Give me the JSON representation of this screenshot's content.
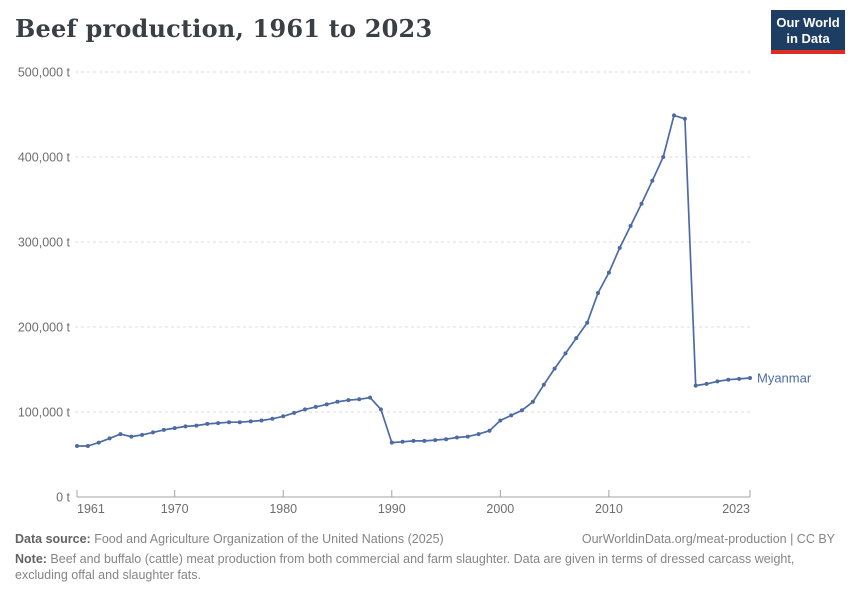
{
  "header": {
    "title": "Beef production, 1961 to 2023",
    "logo": {
      "line1": "Our World",
      "line2": "in Data",
      "bg_color": "#1d3d63",
      "accent_color": "#dc2e22",
      "text_color": "#ffffff"
    }
  },
  "chart_data": {
    "type": "line",
    "title": "Beef production, 1961 to 2023",
    "unit": "t",
    "xlim": [
      1961,
      2023
    ],
    "ylim": [
      0,
      500000
    ],
    "grid": true,
    "legend_position": "end-of-line-label",
    "x": [
      1961,
      1962,
      1963,
      1964,
      1965,
      1966,
      1967,
      1968,
      1969,
      1970,
      1971,
      1972,
      1973,
      1974,
      1975,
      1976,
      1977,
      1978,
      1979,
      1980,
      1981,
      1982,
      1983,
      1984,
      1985,
      1986,
      1987,
      1988,
      1989,
      1990,
      1991,
      1992,
      1993,
      1994,
      1995,
      1996,
      1997,
      1998,
      1999,
      2000,
      2001,
      2002,
      2003,
      2004,
      2005,
      2006,
      2007,
      2008,
      2009,
      2010,
      2011,
      2012,
      2013,
      2014,
      2015,
      2016,
      2017,
      2018,
      2019,
      2020,
      2021,
      2022,
      2023
    ],
    "series": [
      {
        "name": "Myanmar",
        "color": "#4c6ba5",
        "values": [
          60000,
          60000,
          64000,
          69000,
          74000,
          71000,
          73000,
          76000,
          79000,
          81000,
          83000,
          84000,
          86000,
          87000,
          88000,
          88000,
          89000,
          90000,
          92000,
          95000,
          99000,
          103000,
          106000,
          109000,
          112000,
          114000,
          115000,
          117000,
          103000,
          64000,
          65000,
          66000,
          66000,
          67000,
          68000,
          70000,
          71000,
          74000,
          78000,
          90000,
          96000,
          102000,
          112000,
          132000,
          151000,
          169000,
          187000,
          205000,
          240000,
          264000,
          293000,
          319000,
          345000,
          372000,
          400000,
          449000,
          445000,
          131000,
          133000,
          136000,
          138000,
          139000,
          140000
        ]
      }
    ],
    "y_ticks": [
      {
        "value": 0,
        "label": "0 t"
      },
      {
        "value": 100000,
        "label": "100,000 t"
      },
      {
        "value": 200000,
        "label": "200,000 t"
      },
      {
        "value": 300000,
        "label": "300,000 t"
      },
      {
        "value": 400000,
        "label": "400,000 t"
      },
      {
        "value": 500000,
        "label": "500,000 t"
      }
    ],
    "x_ticks": [
      {
        "value": 1961,
        "label": "1961",
        "anchor": "start"
      },
      {
        "value": 1970,
        "label": "1970",
        "anchor": "middle"
      },
      {
        "value": 1980,
        "label": "1980",
        "anchor": "middle"
      },
      {
        "value": 1990,
        "label": "1990",
        "anchor": "middle"
      },
      {
        "value": 2000,
        "label": "2000",
        "anchor": "middle"
      },
      {
        "value": 2010,
        "label": "2010",
        "anchor": "middle"
      },
      {
        "value": 2023,
        "label": "2023",
        "anchor": "end"
      }
    ],
    "colors": {
      "grid": "#dedede",
      "axis": "#a3a3a3",
      "tick_label": "#6e6e6e"
    }
  },
  "footer": {
    "datasource_label": "Data source:",
    "datasource_value": " Food and Agriculture Organization of the United Nations (2025)",
    "link": "OurWorldinData.org/meat-production | CC BY",
    "note_label": "Note:",
    "note_value": " Beef and buffalo (cattle) meat production from both commercial and farm slaughter. Data are given in terms of dressed carcass weight, excluding offal and slaughter fats."
  }
}
